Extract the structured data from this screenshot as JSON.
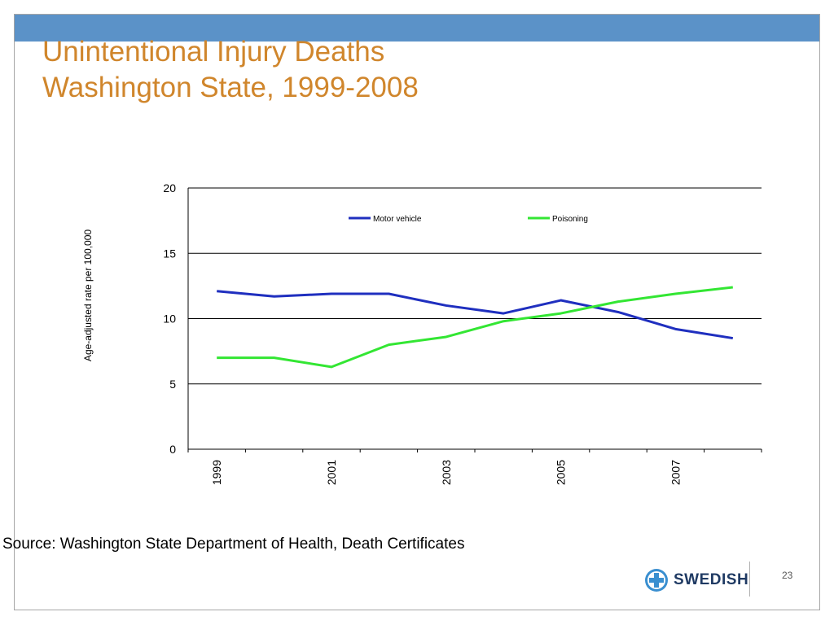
{
  "slide": {
    "title_line1": "Unintentional Injury Deaths",
    "title_line2": "Washington State, 1999-2008",
    "source": "Source: Washington State Department of Health, Death Certificates",
    "logo_text": "SWEDISH",
    "page_number": "23",
    "colors": {
      "title": "#d0862c",
      "top_bar": "#5b92c8",
      "logo": "#1f3a63"
    }
  },
  "chart_data": {
    "type": "line",
    "title": "",
    "xlabel": "",
    "ylabel": "Age-adjusted rate per 100,000",
    "x": [
      1999,
      2000,
      2001,
      2002,
      2003,
      2004,
      2005,
      2006,
      2007,
      2008
    ],
    "x_tick_labels": [
      "1999",
      "2001",
      "2003",
      "2005",
      "2007"
    ],
    "y_ticks": [
      "0",
      "5",
      "10",
      "15",
      "20"
    ],
    "ylim": [
      0,
      20
    ],
    "grid": true,
    "legend_position": "top",
    "series": [
      {
        "name": "Motor vehicle",
        "color": "#1f2fbf",
        "values": [
          12.1,
          11.7,
          11.9,
          11.9,
          11.0,
          10.4,
          11.4,
          10.5,
          9.2,
          8.5
        ]
      },
      {
        "name": "Poisoning",
        "color": "#33e633",
        "values": [
          7.0,
          7.0,
          6.3,
          8.0,
          8.6,
          9.8,
          10.4,
          11.3,
          11.9,
          12.4
        ]
      }
    ]
  }
}
